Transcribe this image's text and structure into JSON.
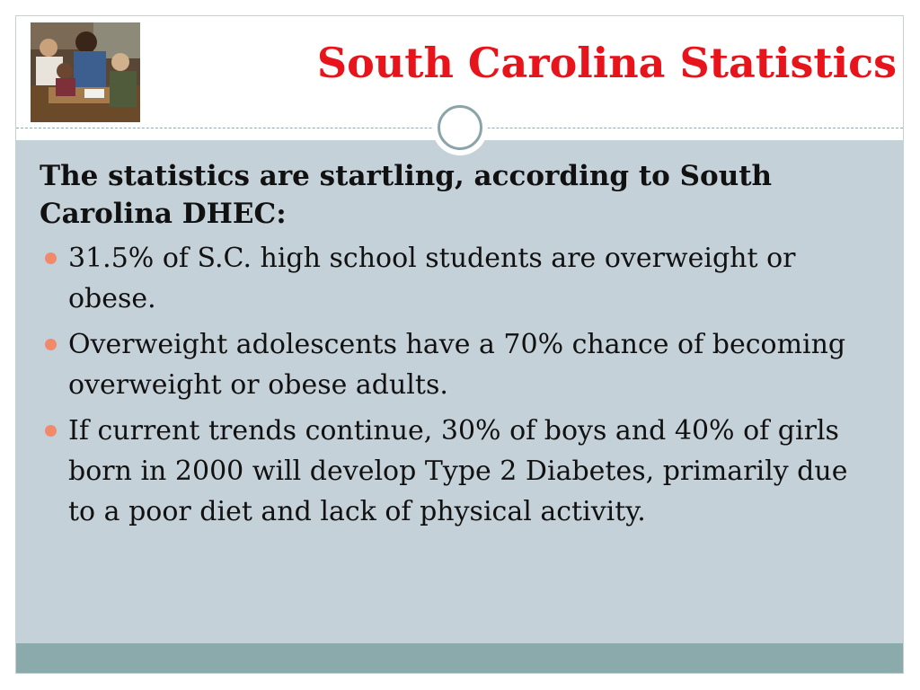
{
  "slide": {
    "title": "South Carolina Statistics",
    "lead": "The statistics are startling, according to South Carolina DHEC:",
    "bullets": [
      "31.5% of S.C. high school students are overweight or obese.",
      "Overweight adolescents have a 70% chance of becoming overweight or obese adults.",
      "If current trends continue, 30% of boys and 40% of girls born in 2000 will develop  Type 2 Diabetes, primarily due to a poor diet and lack of physical activity."
    ]
  },
  "colors": {
    "title": "#e8141c",
    "body_panel": "#c5d1d8",
    "footer_band": "#8aaaab",
    "bullet_marker": "#f08a6a"
  },
  "icons": {
    "photo": "classroom-photo",
    "ornament": "circle-ornament-icon",
    "bullet": "bullet-dot-icon"
  }
}
